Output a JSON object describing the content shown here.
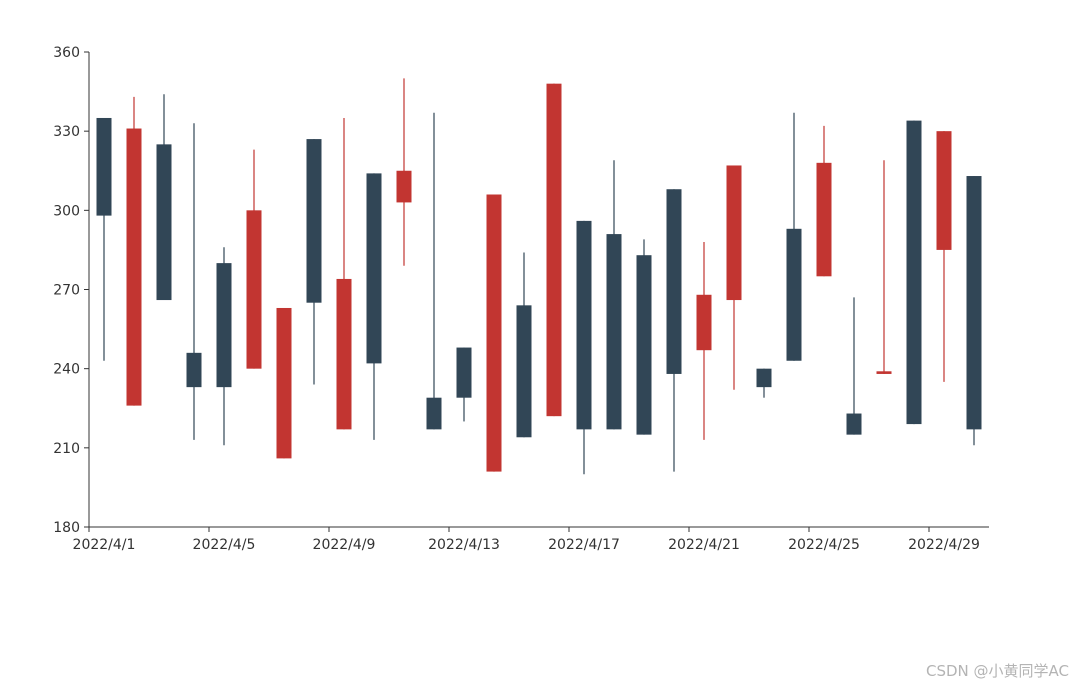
{
  "chart_data": {
    "type": "candlestick",
    "title": "",
    "xlabel": "",
    "ylabel": "",
    "ylim": [
      180,
      360
    ],
    "y_ticks": [
      180,
      210,
      240,
      270,
      300,
      330,
      360
    ],
    "x_tick_labels": [
      "2022/4/1",
      "2022/4/5",
      "2022/4/9",
      "2022/4/13",
      "2022/4/17",
      "2022/4/21",
      "2022/4/25",
      "2022/4/29"
    ],
    "x_tick_label_positions": [
      0,
      4,
      8,
      12,
      16,
      20,
      24,
      28
    ],
    "colors": {
      "bullish": "#c23531",
      "bearish": "#314656",
      "axis": "#333333"
    },
    "grid": false,
    "legend": "none",
    "dates": [
      "2022/4/1",
      "2022/4/2",
      "2022/4/3",
      "2022/4/4",
      "2022/4/5",
      "2022/4/6",
      "2022/4/7",
      "2022/4/8",
      "2022/4/9",
      "2022/4/10",
      "2022/4/11",
      "2022/4/12",
      "2022/4/13",
      "2022/4/14",
      "2022/4/15",
      "2022/4/16",
      "2022/4/17",
      "2022/4/18",
      "2022/4/19",
      "2022/4/20",
      "2022/4/21",
      "2022/4/22",
      "2022/4/23",
      "2022/4/24",
      "2022/4/25",
      "2022/4/26",
      "2022/4/27",
      "2022/4/28",
      "2022/4/29",
      "2022/4/30"
    ],
    "candles": [
      {
        "open": 335,
        "close": 298,
        "low": 243,
        "high": 335
      },
      {
        "open": 226,
        "close": 331,
        "low": 226,
        "high": 343
      },
      {
        "open": 325,
        "close": 266,
        "low": 266,
        "high": 344
      },
      {
        "open": 246,
        "close": 233,
        "low": 213,
        "high": 333
      },
      {
        "open": 280,
        "close": 233,
        "low": 211,
        "high": 286
      },
      {
        "open": 240,
        "close": 300,
        "low": 240,
        "high": 323
      },
      {
        "open": 206,
        "close": 263,
        "low": 206,
        "high": 263
      },
      {
        "open": 327,
        "close": 265,
        "low": 234,
        "high": 327
      },
      {
        "open": 217,
        "close": 274,
        "low": 217,
        "high": 335
      },
      {
        "open": 314,
        "close": 242,
        "low": 213,
        "high": 314
      },
      {
        "open": 303,
        "close": 315,
        "low": 279,
        "high": 350
      },
      {
        "open": 229,
        "close": 217,
        "low": 217,
        "high": 337
      },
      {
        "open": 248,
        "close": 229,
        "low": 220,
        "high": 248
      },
      {
        "open": 201,
        "close": 306,
        "low": 201,
        "high": 306
      },
      {
        "open": 264,
        "close": 214,
        "low": 214,
        "high": 284
      },
      {
        "open": 222,
        "close": 348,
        "low": 222,
        "high": 348
      },
      {
        "open": 296,
        "close": 217,
        "low": 200,
        "high": 296
      },
      {
        "open": 291,
        "close": 217,
        "low": 217,
        "high": 319
      },
      {
        "open": 283,
        "close": 215,
        "low": 215,
        "high": 289
      },
      {
        "open": 308,
        "close": 238,
        "low": 201,
        "high": 308
      },
      {
        "open": 247,
        "close": 268,
        "low": 213,
        "high": 288
      },
      {
        "open": 266,
        "close": 317,
        "low": 232,
        "high": 317
      },
      {
        "open": 240,
        "close": 233,
        "low": 229,
        "high": 240
      },
      {
        "open": 293,
        "close": 243,
        "low": 243,
        "high": 337
      },
      {
        "open": 275,
        "close": 318,
        "low": 275,
        "high": 332
      },
      {
        "open": 223,
        "close": 215,
        "low": 215,
        "high": 267
      },
      {
        "open": 238,
        "close": 239,
        "low": 238,
        "high": 319
      },
      {
        "open": 334,
        "close": 219,
        "low": 219,
        "high": 334
      },
      {
        "open": 285,
        "close": 330,
        "low": 235,
        "high": 330
      },
      {
        "open": 313,
        "close": 217,
        "low": 211,
        "high": 313
      }
    ]
  },
  "watermark": "CSDN @小黄同学AC"
}
